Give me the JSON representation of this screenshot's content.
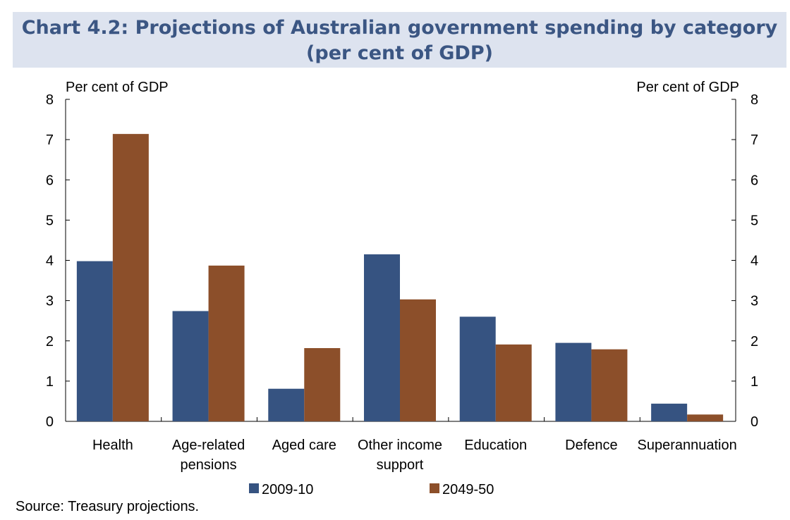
{
  "title": {
    "line1": "Chart 4.2: Projections of Australian government spending by category",
    "line2": "(per cent of GDP)"
  },
  "source": "Source: Treasury projections.",
  "colors": {
    "series_2009": "#365381",
    "series_2049": "#8c4f2a",
    "title_text": "#3b5683",
    "title_band": "#dde3ef"
  },
  "chart_data": {
    "type": "bar",
    "title": "Chart 4.2: Projections of Australian government spending by category (per cent of GDP)",
    "categories": [
      [
        "Health"
      ],
      [
        "Age-related",
        "pensions"
      ],
      [
        "Aged care"
      ],
      [
        "Other income",
        "support"
      ],
      [
        "Education"
      ],
      [
        "Defence"
      ],
      [
        "Superannuation"
      ]
    ],
    "series": [
      {
        "name": "2009-10",
        "values": [
          3.98,
          2.74,
          0.81,
          4.15,
          2.6,
          1.95,
          0.44
        ]
      },
      {
        "name": "2049-50",
        "values": [
          7.14,
          3.87,
          1.82,
          3.03,
          1.91,
          1.79,
          0.17
        ]
      }
    ],
    "ylabel_left": "Per cent of GDP",
    "ylabel_right": "Per cent of GDP",
    "ylim": [
      0,
      8
    ],
    "yticks": [
      "0",
      "1",
      "2",
      "3",
      "4",
      "5",
      "6",
      "7",
      "8"
    ],
    "grid": false,
    "legend_position": "bottom"
  }
}
